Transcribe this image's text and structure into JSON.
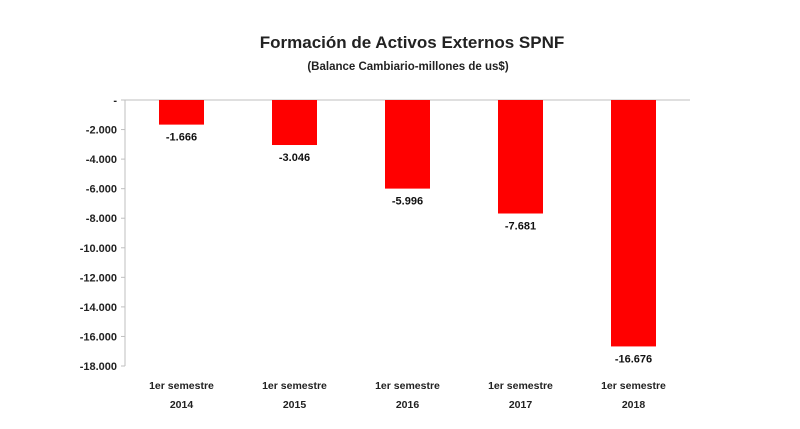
{
  "chart_data": {
    "type": "bar",
    "title": "Formación de Activos Externos SPNF",
    "subtitle": "(Balance Cambiario-millones de us$)",
    "categories": [
      [
        "1er semestre",
        "2014"
      ],
      [
        "1er semestre",
        "2015"
      ],
      [
        "1er semestre",
        "2016"
      ],
      [
        "1er semestre",
        "2017"
      ],
      [
        "1er semestre",
        "2018"
      ]
    ],
    "values": [
      -1666,
      -3046,
      -5996,
      -7681,
      -16676
    ],
    "data_labels": [
      "-1.666",
      "-3.046",
      "-5.996",
      "-7.681",
      "-16.676"
    ],
    "y_ticks": [
      {
        "value": 0,
        "label": "-"
      },
      {
        "value": -2000,
        "label": "-2.000"
      },
      {
        "value": -4000,
        "label": "-4.000"
      },
      {
        "value": -6000,
        "label": "-6.000"
      },
      {
        "value": -8000,
        "label": "-8.000"
      },
      {
        "value": -10000,
        "label": "-10.000"
      },
      {
        "value": -12000,
        "label": "-12.000"
      },
      {
        "value": -14000,
        "label": "-14.000"
      },
      {
        "value": -16000,
        "label": "-16.000"
      },
      {
        "value": -18000,
        "label": "-18.000"
      }
    ],
    "ylim": [
      -18000,
      0
    ],
    "grid": false,
    "legend": "none",
    "bar_color": "#ff0000",
    "axis_color": "#bfbfbf"
  }
}
